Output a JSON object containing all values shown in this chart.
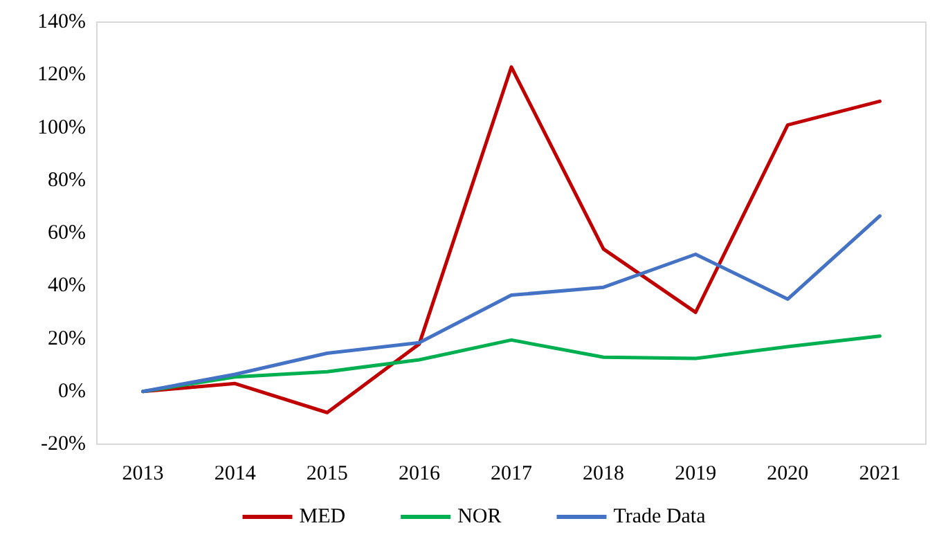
{
  "chart_data": {
    "type": "line",
    "categories": [
      "2013",
      "2014",
      "2015",
      "2016",
      "2017",
      "2018",
      "2019",
      "2020",
      "2021"
    ],
    "series": [
      {
        "name": "MED",
        "color": "#c00000",
        "values": [
          0,
          3,
          -8,
          18,
          123,
          54,
          30,
          101,
          110
        ]
      },
      {
        "name": "NOR",
        "color": "#00b050",
        "values": [
          0,
          5.5,
          7.5,
          12,
          19.5,
          13,
          12.5,
          17,
          21
        ]
      },
      {
        "name": "Trade Data",
        "color": "#4472c4",
        "values": [
          0,
          6.5,
          14.5,
          18.5,
          36.5,
          39.5,
          52,
          35,
          66.5
        ]
      }
    ],
    "ylim": [
      -20,
      140
    ],
    "yticks": [
      {
        "value": -20,
        "label": "-20%"
      },
      {
        "value": 0,
        "label": "0%"
      },
      {
        "value": 20,
        "label": "20%"
      },
      {
        "value": 40,
        "label": "40%"
      },
      {
        "value": 60,
        "label": "60%"
      },
      {
        "value": 80,
        "label": "80%"
      },
      {
        "value": 100,
        "label": "100%"
      },
      {
        "value": 120,
        "label": "120%"
      },
      {
        "value": 140,
        "label": "140%"
      }
    ],
    "grid": false,
    "legend": "bottom",
    "marker": "none",
    "line_style": "solid"
  }
}
